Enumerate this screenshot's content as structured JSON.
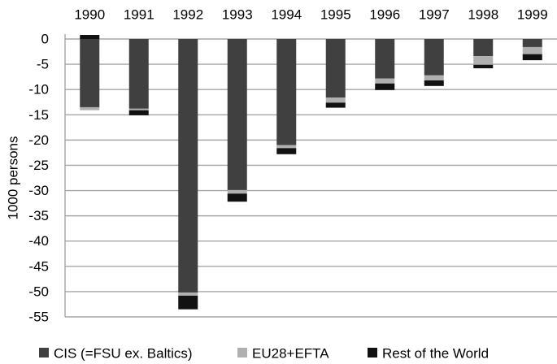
{
  "chart_data": {
    "type": "bar",
    "stacked": true,
    "title": "",
    "xlabel": "",
    "ylabel": "1000 persons",
    "x_axis_position": "top",
    "categories": [
      "1990",
      "1991",
      "1992",
      "1993",
      "1994",
      "1995",
      "1996",
      "1997",
      "1998",
      "1999"
    ],
    "series": [
      {
        "name": "CIS (=FSU ex. Baltics)",
        "color": "#404040",
        "values": [
          -13.5,
          -13.8,
          -50.2,
          -29.9,
          -21.0,
          -11.6,
          -7.8,
          -7.2,
          -3.4,
          -1.6
        ]
      },
      {
        "name": "EU28+EFTA",
        "color": "#b0b0b0",
        "values": [
          -0.6,
          -0.3,
          -0.6,
          -0.7,
          -0.6,
          -1.0,
          -1.0,
          -1.0,
          -1.7,
          -1.4
        ]
      },
      {
        "name": "Rest of the World",
        "color": "#111111",
        "values": [
          0.8,
          -1.0,
          -2.7,
          -1.6,
          -1.2,
          -1.0,
          -1.3,
          -1.1,
          -0.7,
          -1.2
        ]
      }
    ],
    "ylim": [
      -55,
      0
    ],
    "yticks": [
      "0",
      "-5",
      "-10",
      "-15",
      "-20",
      "-25",
      "-30",
      "-35",
      "-40",
      "-45",
      "-50",
      "-55"
    ],
    "grid": true,
    "legend_position": "bottom"
  }
}
